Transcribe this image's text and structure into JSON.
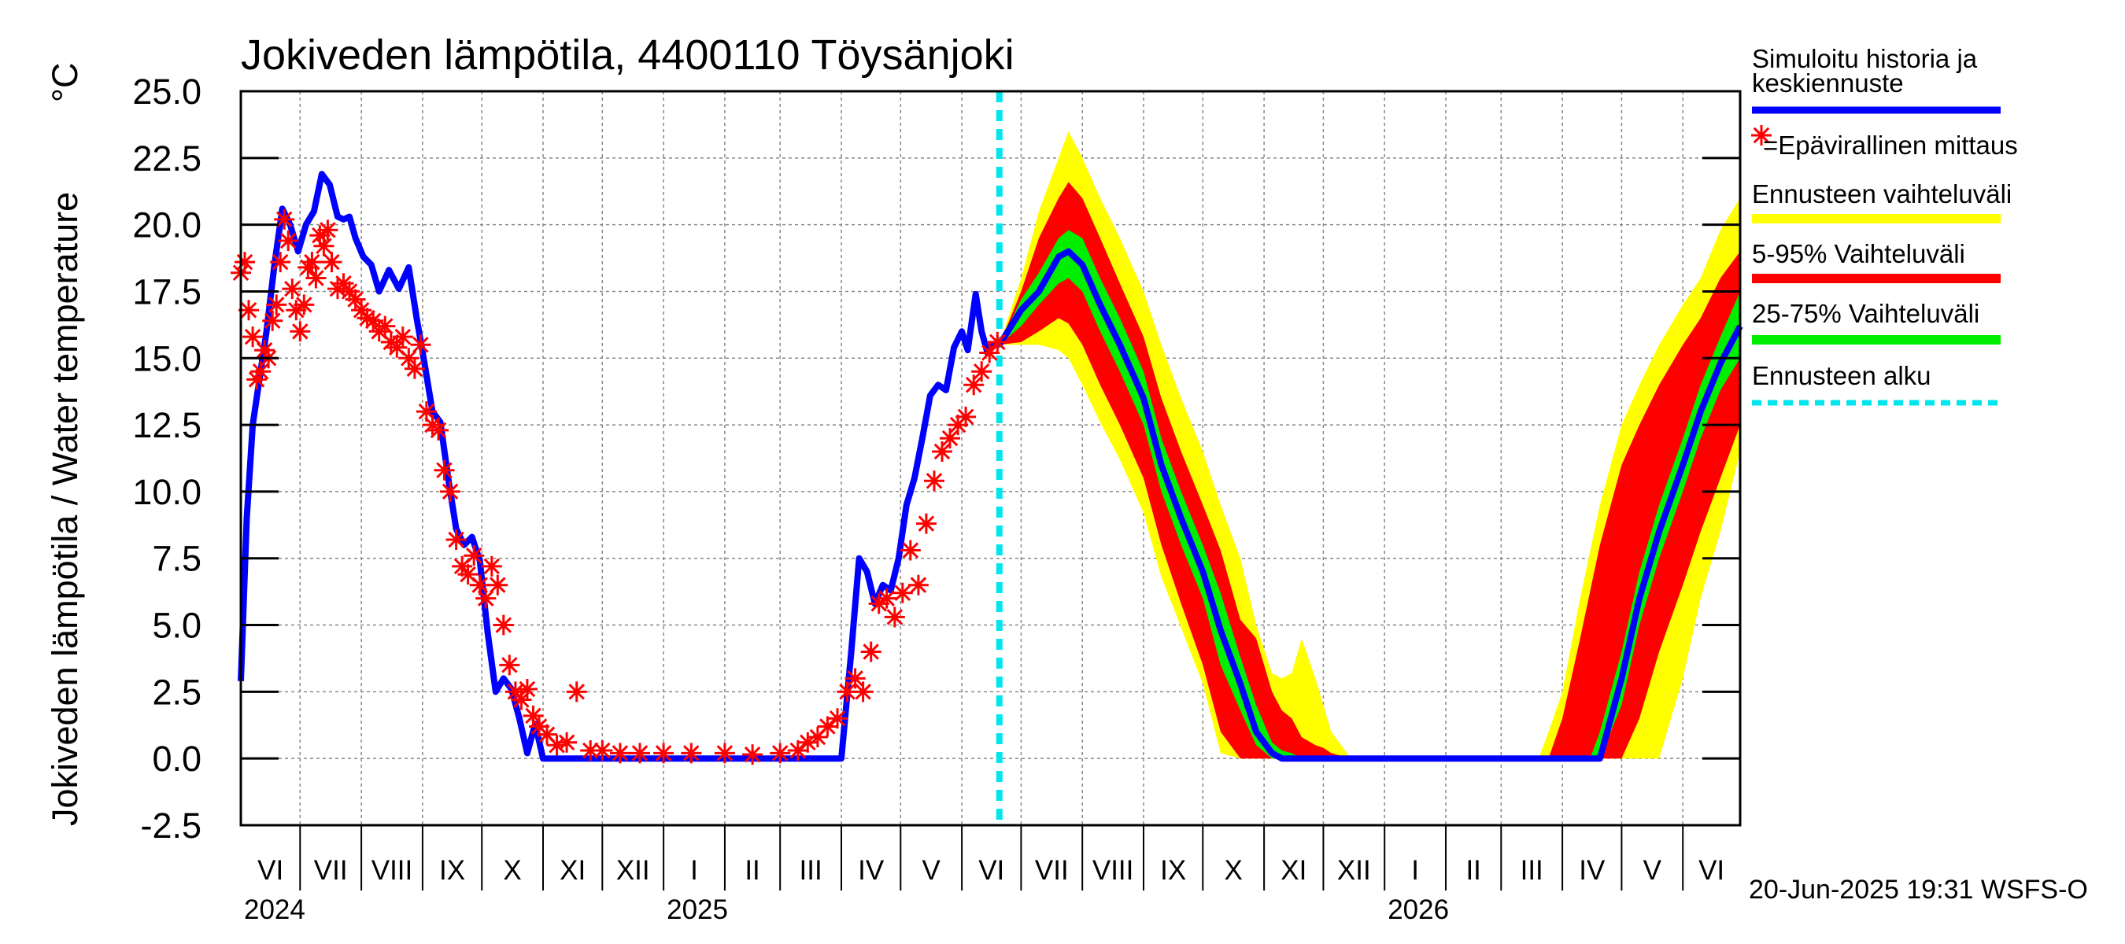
{
  "chart_data": {
    "type": "line",
    "title": "Jokiveden lämpötila, 4400110 Töysänjoki",
    "ylabel": "Jokiveden lämpötila / Water temperature",
    "yunit": "°C",
    "ylim": [
      -2.5,
      25.0
    ],
    "y_ticks": [
      "25.0",
      "22.5",
      "20.0",
      "17.5",
      "15.0",
      "12.5",
      "10.0",
      "7.5",
      "5.0",
      "2.5",
      "0.0",
      "-2.5"
    ],
    "x_range": [
      "2024-06-01",
      "2026-06-30"
    ],
    "month_labels": [
      "VI",
      "VII",
      "VIII",
      "IX",
      "X",
      "XI",
      "XII",
      "I",
      "II",
      "III",
      "IV",
      "V",
      "VI",
      "VII",
      "VIII",
      "IX",
      "X",
      "XI",
      "XII",
      "I",
      "II",
      "III",
      "IV",
      "V",
      "VI"
    ],
    "year_labels": [
      "2024",
      "2025",
      "2026"
    ],
    "grid": true,
    "forecast_start": "2025-06-20",
    "timestamp": "20-Jun-2025 19:31 WSFS-O",
    "colors": {
      "history": "#0000ff",
      "observed": "#ff0000",
      "band_range": "#ffff00",
      "band_5_95": "#ff0000",
      "band_25_75": "#00ee00",
      "forecast_start": "#00e5ee"
    },
    "legend": {
      "position": "right",
      "items": [
        {
          "label": "Simuloitu historia ja keskiennuste",
          "lines": [
            "Simuloitu historia ja",
            "keskiennuste"
          ],
          "key": "history"
        },
        {
          "label": "=Epävirallinen mittaus",
          "key": "observed"
        },
        {
          "label": "Ennusteen vaihteluväli",
          "key": "band_range"
        },
        {
          "label": "5-95% Vaihteluväli",
          "key": "band_5_95"
        },
        {
          "label": "25-75% Vaihteluväli",
          "key": "band_25_75"
        },
        {
          "label": "Ennusteen alku",
          "key": "forecast_start"
        }
      ]
    },
    "series": [
      {
        "key": "history",
        "x": [
          "2024-06-01",
          "2024-06-04",
          "2024-06-07",
          "2024-06-10",
          "2024-06-14",
          "2024-06-18",
          "2024-06-22",
          "2024-06-26",
          "2024-06-30",
          "2024-07-04",
          "2024-07-08",
          "2024-07-12",
          "2024-07-16",
          "2024-07-20",
          "2024-07-23",
          "2024-07-26",
          "2024-07-29",
          "2024-08-02",
          "2024-08-06",
          "2024-08-10",
          "2024-08-15",
          "2024-08-20",
          "2024-08-25",
          "2024-08-29",
          "2024-09-02",
          "2024-09-06",
          "2024-09-10",
          "2024-09-14",
          "2024-09-18",
          "2024-09-22",
          "2024-09-26",
          "2024-09-30",
          "2024-10-04",
          "2024-10-08",
          "2024-10-12",
          "2024-10-16",
          "2024-10-20",
          "2024-10-24",
          "2024-10-28",
          "2024-11-01",
          "2024-11-05",
          "2024-11-09",
          "2024-11-13",
          "2024-11-17",
          "2024-11-21",
          "2024-11-25",
          "2024-12-01",
          "2024-12-15",
          "2025-01-01",
          "2025-01-15",
          "2025-02-01",
          "2025-03-01",
          "2025-03-20",
          "2025-04-01",
          "2025-04-06",
          "2025-04-10",
          "2025-04-14",
          "2025-04-18",
          "2025-04-22",
          "2025-04-26",
          "2025-04-30",
          "2025-05-04",
          "2025-05-08",
          "2025-05-12",
          "2025-05-16",
          "2025-05-20",
          "2025-05-24",
          "2025-05-28",
          "2025-06-01",
          "2025-06-04",
          "2025-06-08",
          "2025-06-11",
          "2025-06-14",
          "2025-06-17",
          "2025-06-20"
        ],
        "y": [
          2.9,
          9.0,
          12.5,
          14.0,
          16.0,
          18.5,
          20.6,
          20.0,
          19.0,
          20.0,
          20.5,
          21.9,
          21.5,
          20.3,
          20.2,
          20.3,
          19.5,
          18.8,
          18.5,
          17.5,
          18.3,
          17.6,
          18.4,
          16.5,
          14.8,
          13.0,
          12.6,
          10.5,
          8.6,
          8.0,
          8.3,
          7.4,
          4.7,
          2.5,
          3.0,
          2.6,
          1.5,
          0.2,
          1.3,
          0.0,
          0.0,
          0.0,
          0.0,
          0.0,
          0.0,
          0.0,
          0.0,
          0.0,
          0.0,
          0.0,
          0.0,
          0.0,
          0.0,
          0.0,
          4.0,
          7.5,
          7.0,
          5.8,
          6.5,
          6.3,
          7.5,
          9.5,
          10.5,
          12.0,
          13.6,
          14.0,
          13.8,
          15.4,
          16.0,
          15.3,
          17.4,
          16.0,
          15.2,
          15.5,
          15.5
        ]
      },
      {
        "key": "observed",
        "x": [
          "2024-06-01",
          "2024-06-03",
          "2024-06-05",
          "2024-06-07",
          "2024-06-09",
          "2024-06-11",
          "2024-06-13",
          "2024-06-15",
          "2024-06-17",
          "2024-06-19",
          "2024-06-21",
          "2024-06-23",
          "2024-06-25",
          "2024-06-27",
          "2024-06-29",
          "2024-07-01",
          "2024-07-03",
          "2024-07-05",
          "2024-07-07",
          "2024-07-09",
          "2024-07-11",
          "2024-07-13",
          "2024-07-15",
          "2024-07-17",
          "2024-07-20",
          "2024-07-23",
          "2024-07-26",
          "2024-07-29",
          "2024-08-01",
          "2024-08-04",
          "2024-08-07",
          "2024-08-10",
          "2024-08-13",
          "2024-08-16",
          "2024-08-19",
          "2024-08-22",
          "2024-08-25",
          "2024-08-28",
          "2024-08-31",
          "2024-09-03",
          "2024-09-06",
          "2024-09-09",
          "2024-09-12",
          "2024-09-15",
          "2024-09-18",
          "2024-09-21",
          "2024-09-24",
          "2024-09-27",
          "2024-09-30",
          "2024-10-03",
          "2024-10-06",
          "2024-10-09",
          "2024-10-12",
          "2024-10-15",
          "2024-10-18",
          "2024-10-21",
          "2024-10-24",
          "2024-10-27",
          "2024-10-30",
          "2024-11-03",
          "2024-11-08",
          "2024-11-13",
          "2024-11-18",
          "2024-11-25",
          "2024-12-01",
          "2024-12-10",
          "2024-12-20",
          "2025-01-01",
          "2025-01-15",
          "2025-02-01",
          "2025-02-15",
          "2025-03-01",
          "2025-03-10",
          "2025-03-15",
          "2025-03-20",
          "2025-03-25",
          "2025-03-30",
          "2025-04-04",
          "2025-04-08",
          "2025-04-12",
          "2025-04-16",
          "2025-04-20",
          "2025-04-24",
          "2025-04-28",
          "2025-05-02",
          "2025-05-06",
          "2025-05-10",
          "2025-05-14",
          "2025-05-18",
          "2025-05-22",
          "2025-05-26",
          "2025-05-30",
          "2025-06-03",
          "2025-06-07",
          "2025-06-11",
          "2025-06-15",
          "2025-06-19"
        ],
        "y": [
          18.2,
          18.6,
          16.8,
          15.8,
          14.2,
          14.5,
          15.3,
          15.0,
          16.4,
          17.0,
          18.6,
          20.2,
          19.4,
          17.6,
          16.8,
          16.0,
          17.0,
          18.4,
          18.6,
          18.0,
          19.6,
          19.2,
          19.8,
          18.6,
          17.6,
          17.8,
          17.5,
          17.2,
          16.8,
          16.5,
          16.4,
          16.0,
          16.2,
          15.6,
          15.4,
          15.8,
          15.0,
          14.6,
          15.5,
          13.0,
          12.5,
          12.3,
          10.8,
          10.0,
          8.2,
          7.2,
          6.9,
          7.6,
          6.5,
          6.0,
          7.2,
          6.5,
          5.0,
          3.5,
          2.5,
          2.2,
          2.6,
          1.6,
          1.2,
          0.9,
          0.5,
          0.6,
          2.5,
          0.3,
          0.3,
          0.2,
          0.2,
          0.2,
          0.2,
          0.2,
          0.15,
          0.2,
          0.3,
          0.6,
          0.8,
          1.2,
          1.5,
          2.5,
          3.0,
          2.5,
          4.0,
          5.8,
          6.0,
          5.3,
          6.2,
          7.8,
          6.5,
          8.8,
          10.4,
          11.5,
          12.0,
          12.5,
          12.8,
          14.0,
          14.5,
          15.2,
          15.6
        ]
      },
      {
        "key": "forecast_mean",
        "x": [
          "2025-06-20",
          "2025-07-01",
          "2025-07-10",
          "2025-07-20",
          "2025-07-25",
          "2025-08-01",
          "2025-08-10",
          "2025-08-20",
          "2025-09-01",
          "2025-09-10",
          "2025-09-20",
          "2025-10-01",
          "2025-10-10",
          "2025-10-20",
          "2025-10-28",
          "2025-11-05",
          "2025-11-10",
          "2025-11-15",
          "2025-11-20",
          "2025-12-01",
          "2026-01-01",
          "2026-02-01",
          "2026-03-01",
          "2026-04-01",
          "2026-04-10",
          "2026-04-20",
          "2026-05-01",
          "2026-05-10",
          "2026-05-20",
          "2026-06-01",
          "2026-06-10",
          "2026-06-20",
          "2026-06-30"
        ],
        "y": [
          15.5,
          16.8,
          17.5,
          18.8,
          19.0,
          18.5,
          17.0,
          15.5,
          13.5,
          11.0,
          9.0,
          7.0,
          4.8,
          2.8,
          1.0,
          0.2,
          0.0,
          0.0,
          0.0,
          0.0,
          0.0,
          0.0,
          0.0,
          0.0,
          0.0,
          0.0,
          3.0,
          6.0,
          8.5,
          11.0,
          13.0,
          14.8,
          16.2
        ]
      },
      {
        "key": "band_range",
        "x": [
          "2025-06-20",
          "2025-07-01",
          "2025-07-10",
          "2025-07-20",
          "2025-07-25",
          "2025-08-01",
          "2025-08-10",
          "2025-08-20",
          "2025-09-01",
          "2025-09-10",
          "2025-09-20",
          "2025-10-01",
          "2025-10-10",
          "2025-10-20",
          "2025-10-28",
          "2025-11-05",
          "2025-11-10",
          "2025-11-15",
          "2025-11-20",
          "2025-11-27",
          "2025-12-01",
          "2025-12-05",
          "2025-12-10",
          "2025-12-15",
          "2026-03-20",
          "2026-03-25",
          "2026-04-01",
          "2026-04-10",
          "2026-04-20",
          "2026-05-01",
          "2026-05-10",
          "2026-05-20",
          "2026-06-01",
          "2026-06-10",
          "2026-06-20",
          "2026-06-30"
        ],
        "low": [
          15.5,
          15.5,
          15.5,
          15.3,
          15.0,
          14.0,
          12.6,
          11.2,
          9.2,
          6.8,
          4.9,
          2.8,
          0.2,
          0.0,
          0.0,
          0.0,
          0.0,
          0.0,
          0.0,
          0.0,
          0.0,
          0.0,
          0.0,
          0.0,
          0.0,
          0.0,
          0.0,
          0.0,
          0.0,
          0.0,
          0.0,
          0.0,
          3.0,
          6.0,
          8.5,
          11.5
        ],
        "high": [
          15.5,
          18.0,
          20.5,
          22.5,
          23.5,
          22.5,
          21.0,
          19.5,
          17.5,
          15.5,
          13.5,
          11.5,
          9.5,
          7.5,
          5.0,
          3.2,
          3.0,
          3.2,
          4.5,
          3.0,
          2.0,
          1.0,
          0.5,
          0.0,
          0.0,
          1.0,
          2.5,
          6.0,
          9.5,
          12.5,
          14.0,
          15.5,
          17.0,
          18.0,
          19.8,
          21.0
        ]
      },
      {
        "key": "band_5_95",
        "x": [
          "2025-06-20",
          "2025-07-01",
          "2025-07-10",
          "2025-07-20",
          "2025-07-25",
          "2025-08-01",
          "2025-08-10",
          "2025-08-20",
          "2025-09-01",
          "2025-09-10",
          "2025-09-20",
          "2025-10-01",
          "2025-10-10",
          "2025-10-20",
          "2025-10-28",
          "2025-11-05",
          "2025-11-10",
          "2025-11-15",
          "2025-11-20",
          "2025-11-27",
          "2025-12-01",
          "2025-12-05",
          "2025-12-10",
          "2025-12-15",
          "2026-03-25",
          "2026-04-01",
          "2026-04-10",
          "2026-04-20",
          "2026-05-01",
          "2026-05-10",
          "2026-05-20",
          "2026-06-01",
          "2026-06-10",
          "2026-06-20",
          "2026-06-30"
        ],
        "low": [
          15.5,
          15.6,
          16.0,
          16.5,
          16.3,
          15.5,
          14.0,
          12.5,
          10.5,
          8.0,
          5.8,
          3.5,
          1.0,
          0.0,
          0.0,
          0.0,
          0.0,
          0.0,
          0.0,
          0.0,
          0.0,
          0.0,
          0.0,
          0.0,
          0.0,
          0.0,
          0.0,
          0.0,
          0.0,
          1.5,
          4.0,
          6.5,
          8.5,
          10.5,
          12.5
        ],
        "high": [
          15.5,
          17.5,
          19.5,
          21.0,
          21.6,
          21.0,
          19.5,
          17.8,
          15.8,
          13.5,
          11.5,
          9.5,
          7.8,
          5.2,
          4.5,
          2.5,
          1.8,
          1.5,
          0.8,
          0.5,
          0.4,
          0.2,
          0.1,
          0.0,
          0.0,
          1.5,
          4.5,
          8.0,
          11.0,
          12.5,
          14.0,
          15.5,
          16.5,
          18.0,
          19.0
        ]
      },
      {
        "key": "band_25_75",
        "x": [
          "2025-06-20",
          "2025-07-01",
          "2025-07-10",
          "2025-07-20",
          "2025-07-25",
          "2025-08-01",
          "2025-08-10",
          "2025-08-20",
          "2025-09-01",
          "2025-09-10",
          "2025-09-20",
          "2025-10-01",
          "2025-10-10",
          "2025-10-20",
          "2025-10-28",
          "2025-11-05",
          "2025-11-10",
          "2025-11-15",
          "2025-11-20",
          "2025-12-01",
          "2026-04-15",
          "2026-04-20",
          "2026-05-01",
          "2026-05-10",
          "2026-05-20",
          "2026-06-01",
          "2026-06-10",
          "2026-06-20",
          "2026-06-30"
        ],
        "low": [
          15.5,
          16.2,
          17.0,
          17.8,
          18.0,
          17.5,
          16.0,
          14.5,
          12.5,
          10.0,
          8.0,
          6.0,
          3.5,
          1.8,
          0.5,
          0.0,
          0.0,
          0.0,
          0.0,
          0.0,
          0.0,
          0.0,
          2.0,
          5.0,
          7.5,
          10.0,
          12.0,
          13.8,
          15.0
        ],
        "high": [
          15.5,
          17.2,
          18.2,
          19.5,
          19.8,
          19.5,
          18.0,
          16.5,
          14.5,
          12.0,
          10.0,
          8.0,
          6.2,
          3.8,
          2.0,
          0.6,
          0.3,
          0.2,
          0.0,
          0.0,
          0.0,
          1.0,
          4.0,
          7.0,
          9.5,
          12.0,
          14.0,
          15.8,
          17.5
        ]
      }
    ]
  }
}
